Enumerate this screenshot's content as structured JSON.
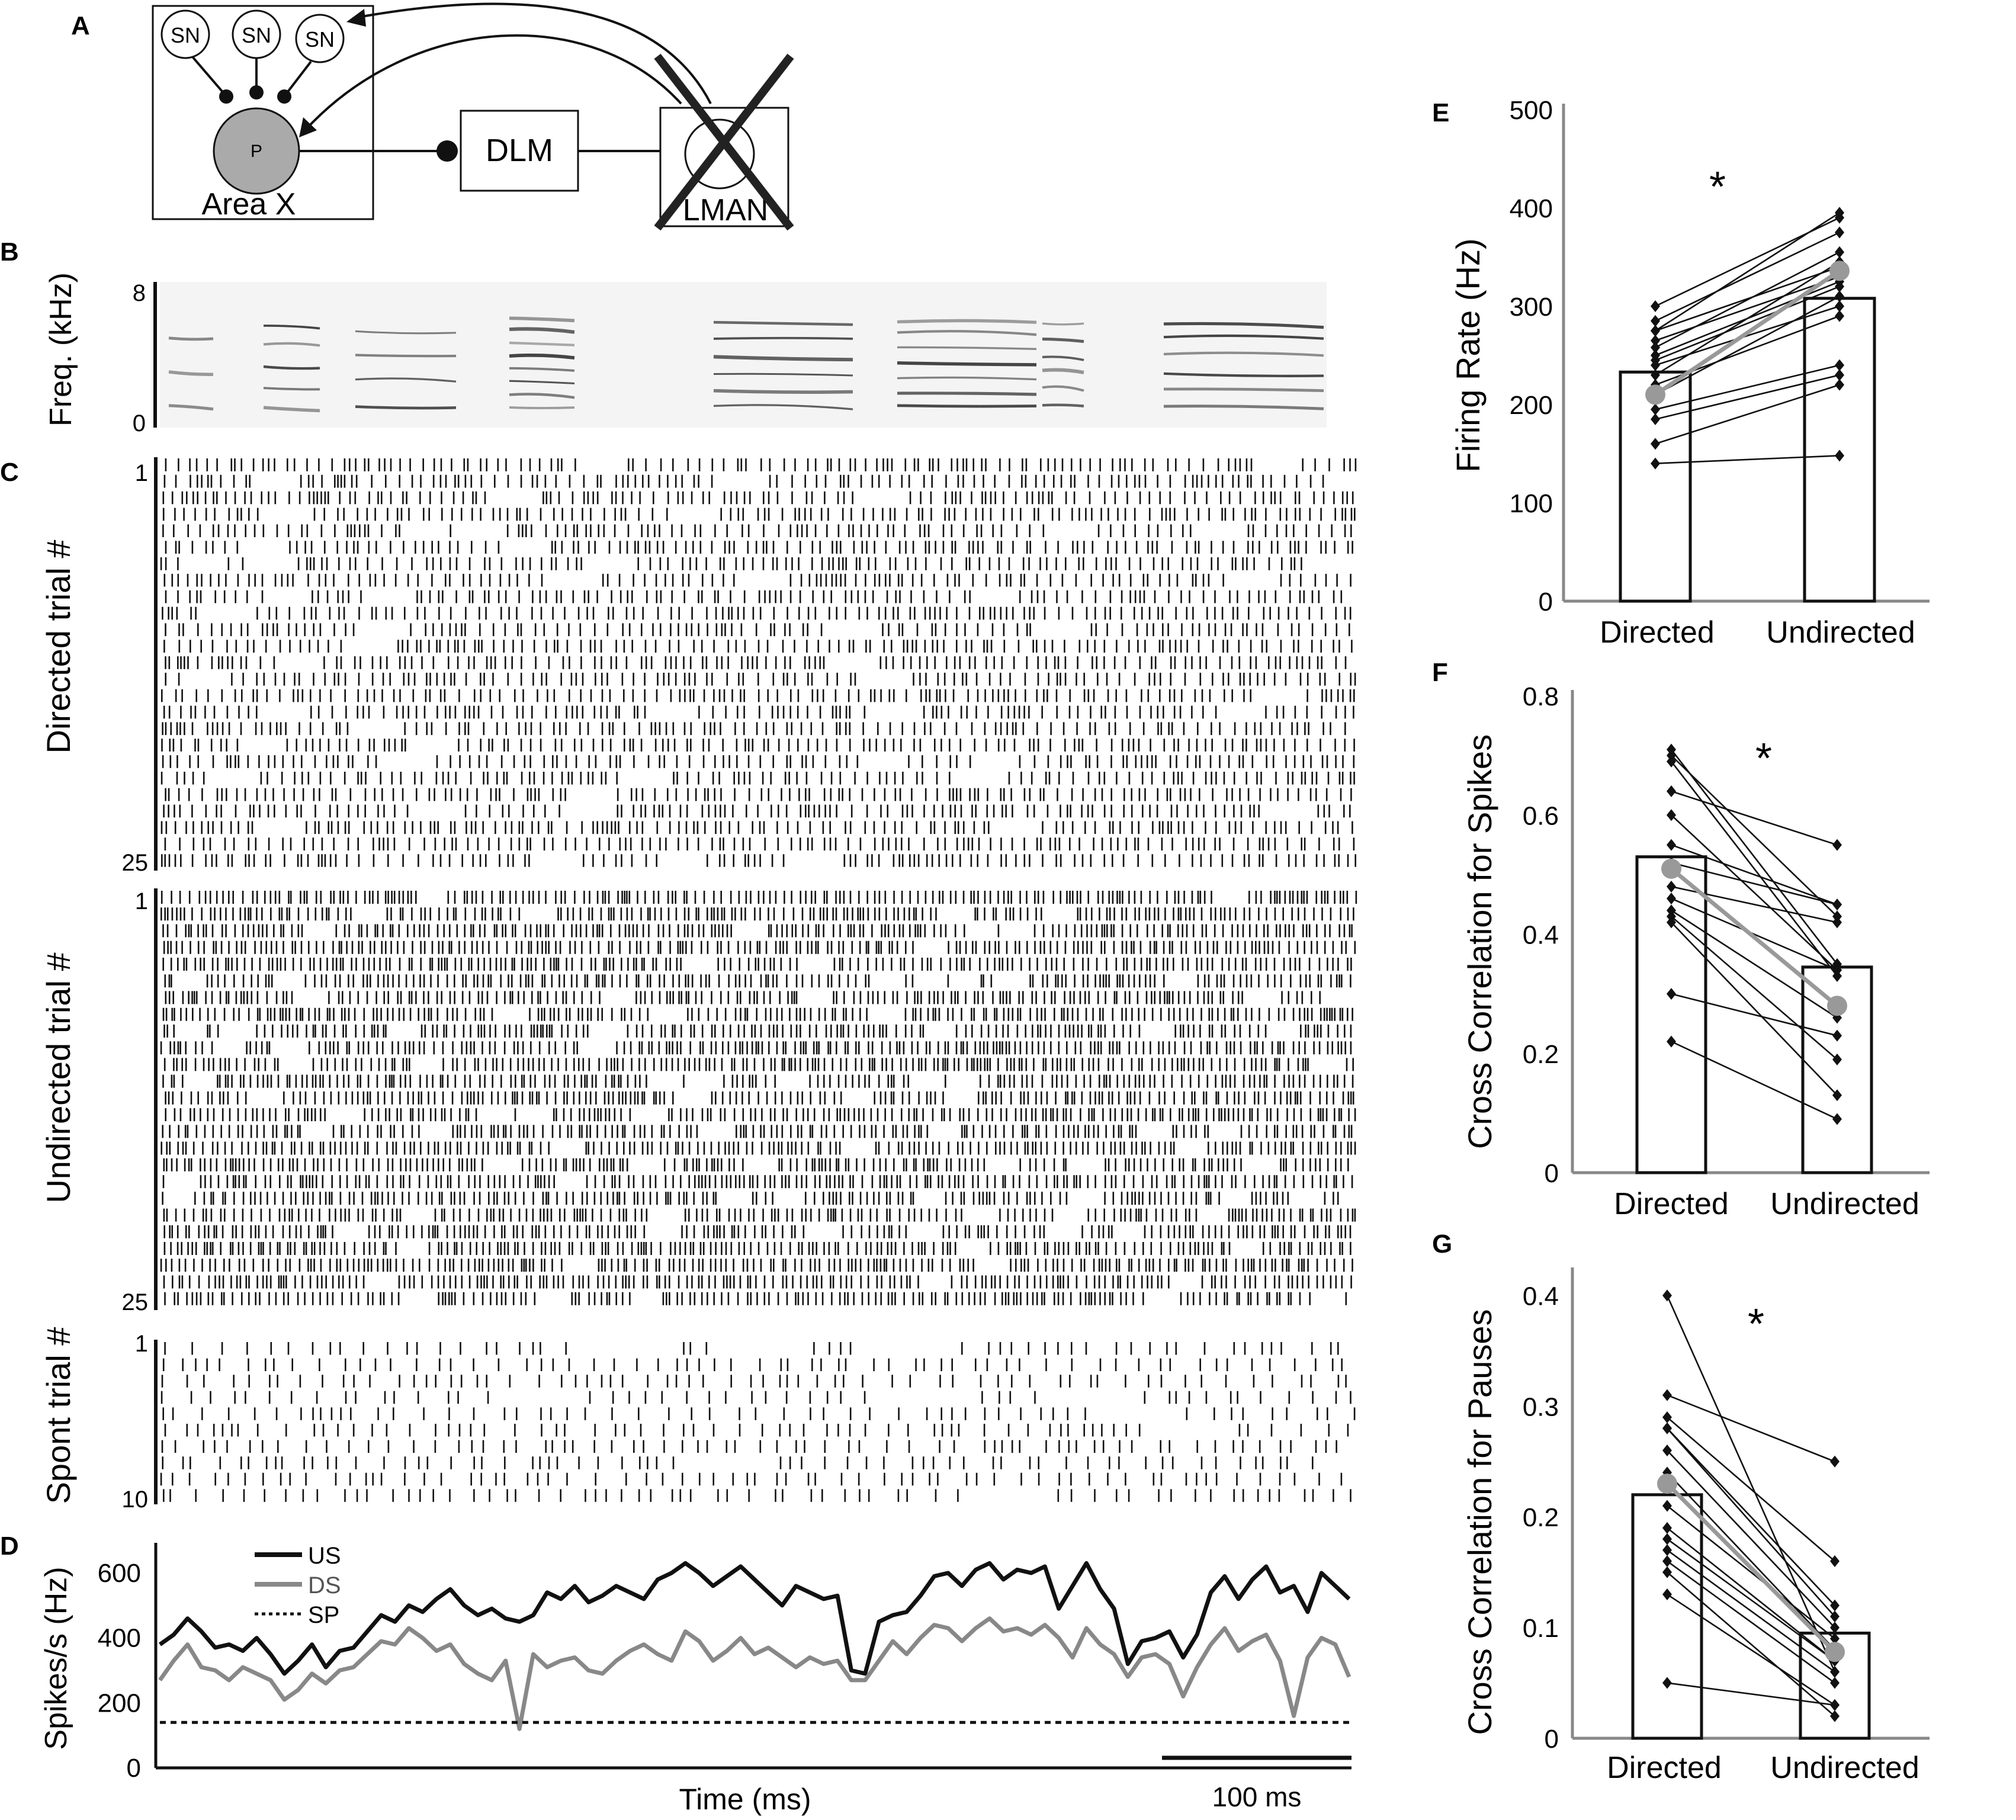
{
  "panel_labels": {
    "A": "A",
    "B": "B",
    "C": "C",
    "D": "D",
    "E": "E",
    "F": "F",
    "G": "G"
  },
  "diagram": {
    "sn_label": "SN",
    "p_label": "P",
    "area_label": "Area X",
    "dlm_label": "DLM",
    "lman_label": "LMAN"
  },
  "spectrogram": {
    "ylabel": "Freq. (kHz)",
    "ytick_top": "8",
    "ytick_bottom": "0"
  },
  "rasters": {
    "directed": {
      "ylabel": "Directed trial #",
      "first": "1",
      "last": "25",
      "n_trials": 25
    },
    "undirected": {
      "ylabel": "Undirected trial #",
      "first": "1",
      "last": "25",
      "n_trials": 25
    },
    "spont": {
      "ylabel": "Spont trial #",
      "first": "1",
      "last": "10",
      "n_trials": 10
    }
  },
  "chart_data": [
    {
      "panel": "D",
      "type": "line",
      "xlabel": "Time (ms)",
      "ylabel": "Spikes/s (Hz)",
      "yticks": [
        "0",
        "200",
        "400",
        "600"
      ],
      "ylim": [
        0,
        680
      ],
      "scalebar": "100 ms",
      "legend": [
        {
          "name": "US",
          "color": "#111111",
          "style": "solid"
        },
        {
          "name": "DS",
          "color": "#888888",
          "style": "solid"
        },
        {
          "name": "SP",
          "color": "#111111",
          "style": "dotted"
        }
      ],
      "series": [
        {
          "name": "US",
          "values": [
            380,
            410,
            460,
            420,
            370,
            380,
            360,
            400,
            350,
            290,
            330,
            380,
            310,
            360,
            370,
            420,
            470,
            450,
            500,
            480,
            520,
            550,
            500,
            470,
            490,
            460,
            450,
            470,
            540,
            520,
            560,
            510,
            530,
            560,
            540,
            520,
            580,
            600,
            630,
            600,
            560,
            590,
            620,
            580,
            540,
            500,
            560,
            540,
            520,
            530,
            300,
            290,
            450,
            470,
            480,
            530,
            590,
            600,
            560,
            610,
            630,
            580,
            610,
            600,
            620,
            490,
            560,
            630,
            550,
            490,
            320,
            390,
            400,
            420,
            340,
            410,
            540,
            590,
            520,
            580,
            620,
            540,
            560,
            480,
            600,
            560,
            520
          ]
        },
        {
          "name": "DS",
          "values": [
            270,
            330,
            380,
            310,
            300,
            270,
            310,
            290,
            270,
            210,
            240,
            290,
            260,
            300,
            310,
            350,
            390,
            380,
            430,
            400,
            360,
            380,
            320,
            290,
            270,
            330,
            120,
            350,
            310,
            330,
            340,
            300,
            290,
            330,
            360,
            380,
            350,
            330,
            420,
            390,
            330,
            360,
            400,
            350,
            370,
            340,
            310,
            340,
            320,
            330,
            270,
            270,
            330,
            390,
            350,
            400,
            440,
            430,
            390,
            430,
            460,
            420,
            430,
            410,
            440,
            400,
            340,
            430,
            380,
            350,
            280,
            340,
            350,
            320,
            220,
            310,
            380,
            430,
            360,
            390,
            410,
            330,
            160,
            340,
            400,
            380,
            280
          ]
        },
        {
          "name": "SP",
          "values": [
            140,
            140
          ]
        }
      ]
    },
    {
      "panel": "E",
      "type": "bar",
      "ylabel": "Firing Rate (Hz)",
      "categories": [
        "Directed",
        "Undirected"
      ],
      "yticks": [
        "0",
        "100",
        "200",
        "300",
        "400",
        "500"
      ],
      "ylim": [
        0,
        500
      ],
      "significance": "*",
      "bars": [
        233,
        308
      ],
      "mean_point": [
        210,
        336
      ],
      "pairs": [
        [
          300,
          390
        ],
        [
          285,
          375
        ],
        [
          275,
          340
        ],
        [
          265,
          330
        ],
        [
          258,
          355
        ],
        [
          250,
          325
        ],
        [
          245,
          320
        ],
        [
          240,
          300
        ],
        [
          230,
          345
        ],
        [
          220,
          290
        ],
        [
          210,
          310
        ],
        [
          195,
          240
        ],
        [
          185,
          230
        ],
        [
          160,
          220
        ],
        [
          140,
          148
        ],
        [
          275,
          395
        ]
      ]
    },
    {
      "panel": "F",
      "type": "bar",
      "ylabel": "Cross Correlation for Spikes",
      "categories": [
        "Directed",
        "Undirected"
      ],
      "yticks": [
        "0",
        "0.2",
        "0.4",
        "0.6",
        "0.8"
      ],
      "ylim": [
        0,
        0.8
      ],
      "significance": "*",
      "bars": [
        0.53,
        0.345
      ],
      "mean_point": [
        0.51,
        0.28
      ],
      "pairs": [
        [
          0.71,
          0.35
        ],
        [
          0.7,
          0.43
        ],
        [
          0.69,
          0.33
        ],
        [
          0.64,
          0.55
        ],
        [
          0.6,
          0.34
        ],
        [
          0.55,
          0.45
        ],
        [
          0.52,
          0.45
        ],
        [
          0.48,
          0.42
        ],
        [
          0.46,
          0.34
        ],
        [
          0.44,
          0.26
        ],
        [
          0.43,
          0.19
        ],
        [
          0.42,
          0.13
        ],
        [
          0.3,
          0.23
        ],
        [
          0.22,
          0.09
        ]
      ]
    },
    {
      "panel": "G",
      "type": "bar",
      "ylabel": "Cross Correlation for Pauses",
      "categories": [
        "Directed",
        "Undirected"
      ],
      "yticks": [
        "0",
        "0.1",
        "0.2",
        "0.3",
        "0.4"
      ],
      "ylim": [
        0,
        0.42
      ],
      "significance": "*",
      "bars": [
        0.22,
        0.095
      ],
      "mean_point": [
        0.23,
        0.078
      ],
      "pairs": [
        [
          0.4,
          0.06
        ],
        [
          0.31,
          0.25
        ],
        [
          0.29,
          0.16
        ],
        [
          0.28,
          0.12
        ],
        [
          0.28,
          0.11
        ],
        [
          0.26,
          0.1
        ],
        [
          0.24,
          0.08
        ],
        [
          0.21,
          0.09
        ],
        [
          0.19,
          0.07
        ],
        [
          0.18,
          0.07
        ],
        [
          0.17,
          0.06
        ],
        [
          0.16,
          0.05
        ],
        [
          0.15,
          0.02
        ],
        [
          0.13,
          0.03
        ],
        [
          0.05,
          0.03
        ]
      ]
    }
  ]
}
